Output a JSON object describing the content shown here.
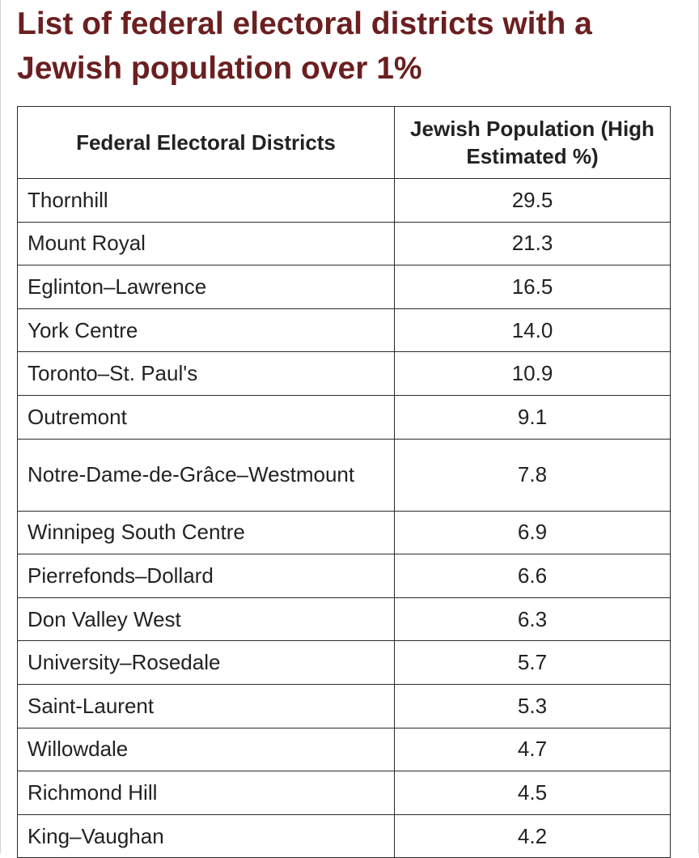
{
  "page": {
    "title": "List of federal electoral districts with a Jewish population over 1%"
  },
  "table": {
    "headers": [
      "Federal Electoral Districts",
      "Jewish Population (High Estimated %)"
    ],
    "rows": [
      {
        "district": "Thornhill",
        "percent": "29.5"
      },
      {
        "district": "Mount Royal",
        "percent": "21.3"
      },
      {
        "district": "Eglinton–Lawrence",
        "percent": "16.5"
      },
      {
        "district": "York Centre",
        "percent": "14.0"
      },
      {
        "district": "Toronto–St. Paul's",
        "percent": "10.9"
      },
      {
        "district": "Outremont",
        "percent": "9.1"
      },
      {
        "district": "Notre-Dame-de-Grâce–Westmount",
        "percent": "7.8"
      },
      {
        "district": "Winnipeg South Centre",
        "percent": "6.9"
      },
      {
        "district": "Pierrefonds–Dollard",
        "percent": "6.6"
      },
      {
        "district": "Don Valley West",
        "percent": "6.3"
      },
      {
        "district": "University–Rosedale",
        "percent": "5.7"
      },
      {
        "district": "Saint-Laurent",
        "percent": "5.3"
      },
      {
        "district": "Willowdale",
        "percent": "4.7"
      },
      {
        "district": "Richmond Hill",
        "percent": "4.5"
      },
      {
        "district": "King–Vaughan",
        "percent": "4.2"
      }
    ]
  },
  "colors": {
    "title": "#6b1f20",
    "text": "#222222",
    "border": "#2a2a2a"
  }
}
